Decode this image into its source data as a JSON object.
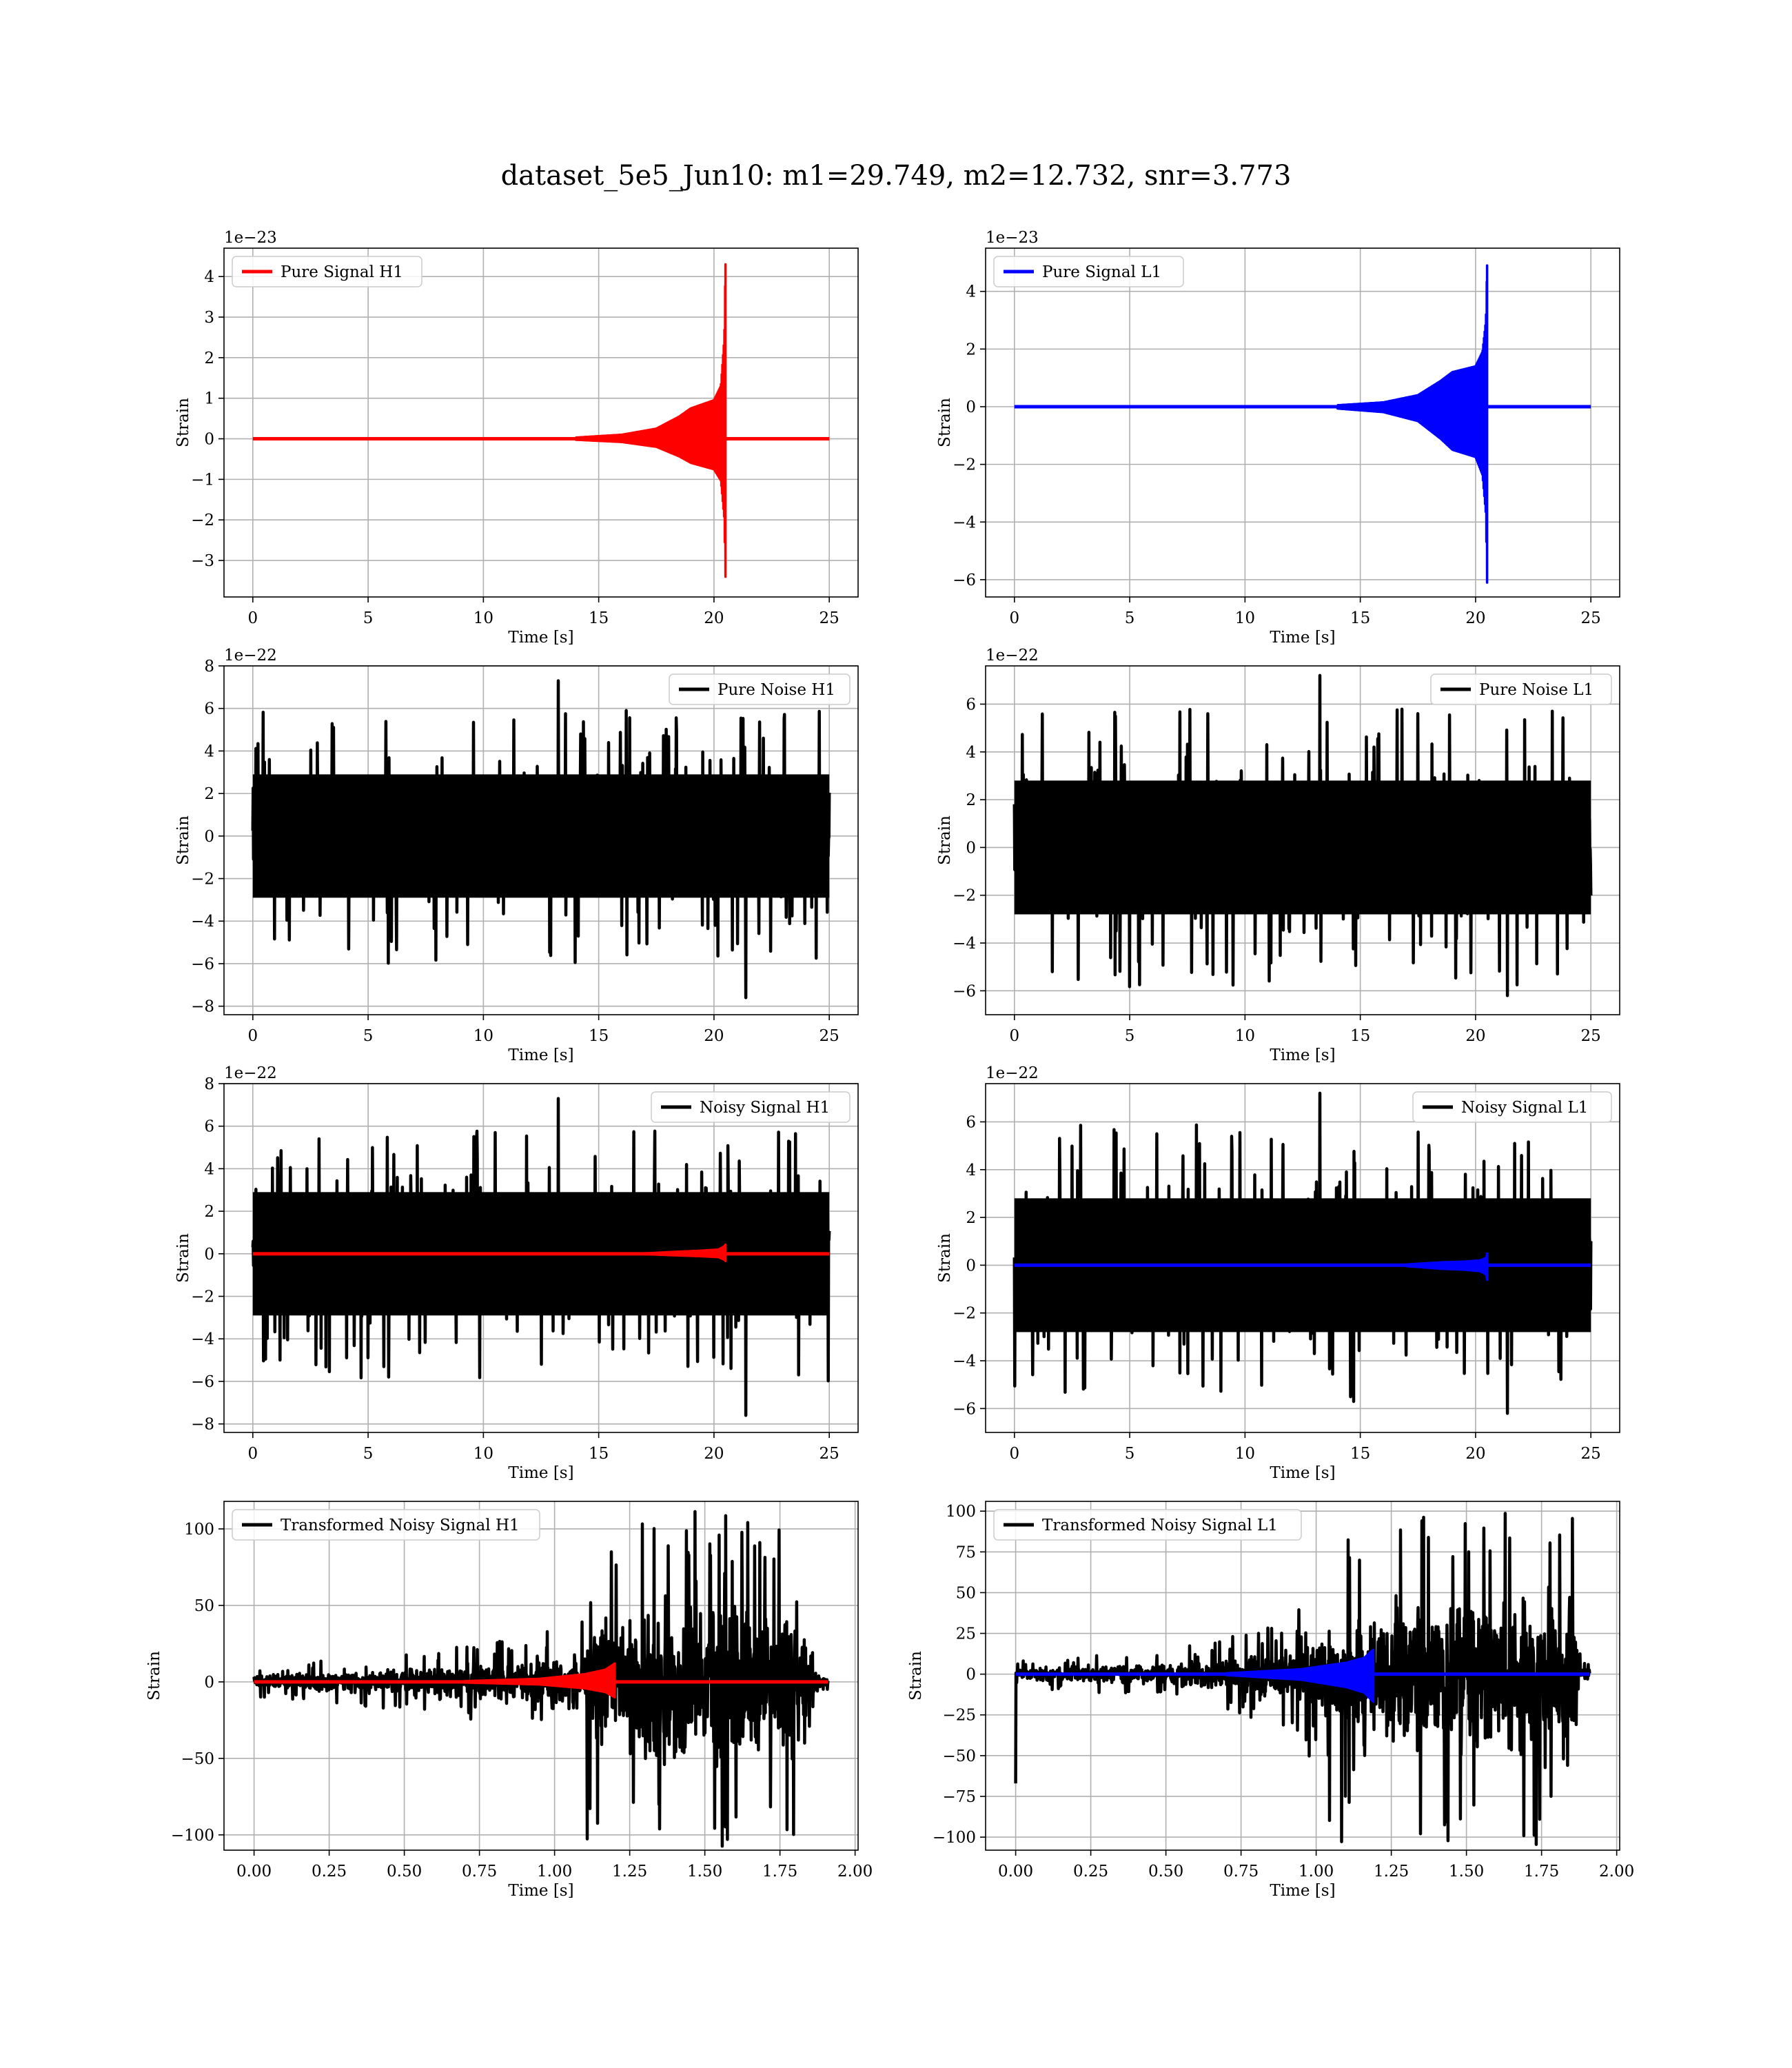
{
  "title": "dataset_5e5_Jun10: m1=29.749, m2=12.732, snr=3.773",
  "colors": {
    "h1": "#ff0000",
    "l1": "#0000ff",
    "noise": "#000000",
    "grid": "#b0b0b0"
  },
  "chart_data": [
    {
      "type": "line",
      "legend": "Pure Signal H1",
      "legend_loc": "upper left",
      "xlabel": "Time [s]",
      "ylabel": "Strain",
      "offset_text": "1e−23",
      "xlim": [
        -1.25,
        26.25
      ],
      "ylim": [
        -3.9,
        4.7
      ],
      "xticks": [
        0,
        5,
        10,
        15,
        20,
        25
      ],
      "xtick_labels": [
        "0",
        "5",
        "10",
        "15",
        "20",
        "25"
      ],
      "yticks": [
        -3,
        -2,
        -1,
        0,
        1,
        2,
        3,
        4
      ],
      "ytick_labels": [
        "−3",
        "−2",
        "−1",
        "0",
        "1",
        "2",
        "3",
        "4"
      ],
      "series": [
        {
          "kind": "chirp",
          "color": "red",
          "t_range": [
            0,
            25
          ],
          "merger_t": 20.5,
          "envelope": [
            [
              14,
              0.03
            ],
            [
              16,
              0.1
            ],
            [
              17.5,
              0.25
            ],
            [
              18.5,
              0.55
            ],
            [
              19.0,
              0.75
            ],
            [
              19.5,
              0.85
            ],
            [
              20.0,
              0.95
            ],
            [
              20.3,
              1.3
            ],
            [
              20.45,
              2.5
            ],
            [
              20.5,
              4.3
            ]
          ],
          "peak_pos": 4.3,
          "peak_neg": -3.4
        }
      ]
    },
    {
      "type": "line",
      "legend": "Pure Signal L1",
      "legend_loc": "upper left",
      "xlabel": "Time [s]",
      "ylabel": "Strain",
      "offset_text": "1e−23",
      "xlim": [
        -1.25,
        26.25
      ],
      "ylim": [
        -6.6,
        5.5
      ],
      "xticks": [
        0,
        5,
        10,
        15,
        20,
        25
      ],
      "xtick_labels": [
        "0",
        "5",
        "10",
        "15",
        "20",
        "25"
      ],
      "yticks": [
        -6,
        -4,
        -2,
        0,
        2,
        4
      ],
      "ytick_labels": [
        "−6",
        "−4",
        "−2",
        "0",
        "2",
        "4"
      ],
      "series": [
        {
          "kind": "chirp",
          "color": "blue",
          "t_range": [
            0,
            25
          ],
          "merger_t": 20.5,
          "envelope": [
            [
              14,
              0.05
            ],
            [
              16,
              0.15
            ],
            [
              17.5,
              0.4
            ],
            [
              18.5,
              0.9
            ],
            [
              19.0,
              1.2
            ],
            [
              19.5,
              1.3
            ],
            [
              20.0,
              1.4
            ],
            [
              20.3,
              1.9
            ],
            [
              20.45,
              3.0
            ],
            [
              20.5,
              4.9
            ]
          ],
          "peak_pos": 4.9,
          "peak_neg": -6.1
        }
      ]
    },
    {
      "type": "line",
      "legend": "Pure Noise H1",
      "legend_loc": "upper right",
      "xlabel": "Time [s]",
      "ylabel": "Strain",
      "offset_text": "1e−22",
      "xlim": [
        -1.25,
        26.25
      ],
      "ylim": [
        -8.4,
        8.0
      ],
      "xticks": [
        0,
        5,
        10,
        15,
        20,
        25
      ],
      "xtick_labels": [
        "0",
        "5",
        "10",
        "15",
        "20",
        "25"
      ],
      "yticks": [
        -8,
        -6,
        -4,
        -2,
        0,
        2,
        4,
        6,
        8
      ],
      "ytick_labels": [
        "−8",
        "−6",
        "−4",
        "−2",
        "0",
        "2",
        "4",
        "6",
        "8"
      ],
      "series": [
        {
          "kind": "noise",
          "color": "black",
          "t_range": [
            0,
            25
          ],
          "core": 2.9,
          "spike_top": 7.3,
          "spike_bottom": -7.6
        }
      ]
    },
    {
      "type": "line",
      "legend": "Pure Noise L1",
      "legend_loc": "upper right",
      "xlabel": "Time [s]",
      "ylabel": "Strain",
      "offset_text": "1e−22",
      "xlim": [
        -1.25,
        26.25
      ],
      "ylim": [
        -7.0,
        7.6
      ],
      "xticks": [
        0,
        5,
        10,
        15,
        20,
        25
      ],
      "xtick_labels": [
        "0",
        "5",
        "10",
        "15",
        "20",
        "25"
      ],
      "yticks": [
        -6,
        -4,
        -2,
        0,
        2,
        4,
        6
      ],
      "ytick_labels": [
        "−6",
        "−4",
        "−2",
        "0",
        "2",
        "4",
        "6"
      ],
      "series": [
        {
          "kind": "noise",
          "color": "black",
          "t_range": [
            0,
            25
          ],
          "core": 2.8,
          "spike_top": 7.2,
          "spike_bottom": -6.2
        }
      ]
    },
    {
      "type": "line",
      "legend": "Noisy Signal H1",
      "legend_loc": "upper right",
      "xlabel": "Time [s]",
      "ylabel": "Strain",
      "offset_text": "1e−22",
      "xlim": [
        -1.25,
        26.25
      ],
      "ylim": [
        -8.4,
        8.0
      ],
      "xticks": [
        0,
        5,
        10,
        15,
        20,
        25
      ],
      "xtick_labels": [
        "0",
        "5",
        "10",
        "15",
        "20",
        "25"
      ],
      "yticks": [
        -8,
        -6,
        -4,
        -2,
        0,
        2,
        4,
        6,
        8
      ],
      "ytick_labels": [
        "−8",
        "−6",
        "−4",
        "−2",
        "0",
        "2",
        "4",
        "6",
        "8"
      ],
      "series": [
        {
          "kind": "noise",
          "color": "black",
          "t_range": [
            0,
            25
          ],
          "core": 2.9,
          "spike_top": 7.3,
          "spike_bottom": -7.6
        },
        {
          "kind": "chirp",
          "color": "red",
          "t_range": [
            0,
            25
          ],
          "merger_t": 20.5,
          "envelope": [
            [
              17,
              0.02
            ],
            [
              18.5,
              0.1
            ],
            [
              19.5,
              0.15
            ],
            [
              20.2,
              0.2
            ],
            [
              20.45,
              0.35
            ],
            [
              20.5,
              0.43
            ]
          ],
          "peak_pos": 0.43,
          "peak_neg": -0.34
        }
      ]
    },
    {
      "type": "line",
      "legend": "Noisy Signal L1",
      "legend_loc": "upper right",
      "xlabel": "Time [s]",
      "ylabel": "Strain",
      "offset_text": "1e−22",
      "xlim": [
        -1.25,
        26.25
      ],
      "ylim": [
        -7.0,
        7.6
      ],
      "xticks": [
        0,
        5,
        10,
        15,
        20,
        25
      ],
      "xtick_labels": [
        "0",
        "5",
        "10",
        "15",
        "20",
        "25"
      ],
      "yticks": [
        -6,
        -4,
        -2,
        0,
        2,
        4,
        6
      ],
      "ytick_labels": [
        "−6",
        "−4",
        "−2",
        "0",
        "2",
        "4",
        "6"
      ],
      "series": [
        {
          "kind": "noise",
          "color": "black",
          "t_range": [
            0,
            25
          ],
          "core": 2.8,
          "spike_top": 7.2,
          "spike_bottom": -6.2
        },
        {
          "kind": "chirp",
          "color": "blue",
          "t_range": [
            0,
            25
          ],
          "merger_t": 20.5,
          "envelope": [
            [
              17,
              0.03
            ],
            [
              18.5,
              0.12
            ],
            [
              19.5,
              0.15
            ],
            [
              20.2,
              0.2
            ],
            [
              20.45,
              0.3
            ],
            [
              20.5,
              0.49
            ]
          ],
          "peak_pos": 0.49,
          "peak_neg": -0.61
        }
      ]
    },
    {
      "type": "line",
      "legend": "Transformed Noisy Signal H1",
      "legend_loc": "upper left",
      "xlabel": "Time [s]",
      "ylabel": "Strain",
      "offset_text": "",
      "xlim": [
        -0.1,
        2.01
      ],
      "ylim": [
        -110,
        118
      ],
      "xticks": [
        0,
        0.25,
        0.5,
        0.75,
        1.0,
        1.25,
        1.5,
        1.75,
        2.0
      ],
      "xtick_labels": [
        "0.00",
        "0.25",
        "0.50",
        "0.75",
        "1.00",
        "1.25",
        "1.50",
        "1.75",
        "2.00"
      ],
      "yticks": [
        -100,
        -50,
        0,
        50,
        100
      ],
      "ytick_labels": [
        "−100",
        "−50",
        "0",
        "50",
        "100"
      ],
      "series": [
        {
          "kind": "whitened",
          "color": "black",
          "t_range": [
            0,
            1.91
          ],
          "envelope": [
            [
              0,
              6
            ],
            [
              0.5,
              12
            ],
            [
              0.9,
              18
            ],
            [
              1.1,
              28
            ],
            [
              1.12,
              62
            ],
            [
              1.5,
              72
            ],
            [
              1.85,
              62
            ],
            [
              1.87,
              6
            ],
            [
              1.91,
              4
            ]
          ],
          "spike_top": 105,
          "spike_bottom": -104
        },
        {
          "kind": "chirp",
          "color": "red",
          "t_range": [
            0,
            1.91
          ],
          "merger_t": 1.2,
          "envelope": [
            [
              0.7,
              0.5
            ],
            [
              0.95,
              2
            ],
            [
              1.1,
              5
            ],
            [
              1.17,
              8
            ],
            [
              1.2,
              12
            ]
          ],
          "peak_pos": 12,
          "peak_neg": -10
        }
      ]
    },
    {
      "type": "line",
      "legend": "Transformed Noisy Signal L1",
      "legend_loc": "upper left",
      "xlabel": "Time [s]",
      "ylabel": "Strain",
      "offset_text": "",
      "xlim": [
        -0.1,
        2.01
      ],
      "ylim": [
        -108,
        106
      ],
      "xticks": [
        0,
        0.25,
        0.5,
        0.75,
        1.0,
        1.25,
        1.5,
        1.75,
        2.0
      ],
      "xtick_labels": [
        "0.00",
        "0.25",
        "0.50",
        "0.75",
        "1.00",
        "1.25",
        "1.50",
        "1.75",
        "2.00"
      ],
      "yticks": [
        -100,
        -75,
        -50,
        -25,
        0,
        25,
        50,
        75,
        100
      ],
      "ytick_labels": [
        "−100",
        "−75",
        "−50",
        "−25",
        "0",
        "25",
        "50",
        "75",
        "100"
      ],
      "series": [
        {
          "kind": "whitened",
          "color": "black",
          "t_range": [
            0,
            1.91
          ],
          "envelope": [
            [
              0,
              5
            ],
            [
              0.5,
              9
            ],
            [
              0.9,
              20
            ],
            [
              1.0,
              35
            ],
            [
              1.1,
              52
            ],
            [
              1.5,
              70
            ],
            [
              1.86,
              64
            ],
            [
              1.88,
              6
            ],
            [
              1.91,
              4
            ]
          ],
          "spike_top": 97,
          "spike_bottom": -103,
          "start_spike": -67
        },
        {
          "kind": "chirp",
          "color": "blue",
          "t_range": [
            0,
            1.91
          ],
          "merger_t": 1.19,
          "envelope": [
            [
              0.7,
              0.5
            ],
            [
              0.95,
              3
            ],
            [
              1.1,
              7
            ],
            [
              1.16,
              10
            ],
            [
              1.19,
              15
            ]
          ],
          "peak_pos": 15,
          "peak_neg": -17
        }
      ]
    }
  ]
}
